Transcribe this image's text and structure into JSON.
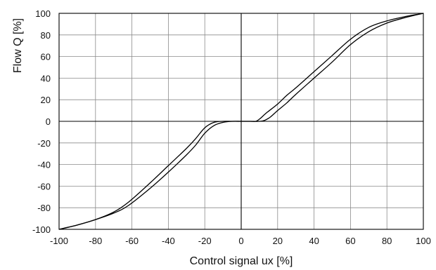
{
  "chart_data": {
    "type": "line",
    "title": "",
    "xlabel": "Control signal ux [%]",
    "ylabel": "Flow Q [%]",
    "xlim": [
      -100,
      100
    ],
    "ylim": [
      -100,
      100
    ],
    "x_ticks": [
      -100,
      -80,
      -60,
      -40,
      -20,
      0,
      20,
      40,
      60,
      80,
      100
    ],
    "y_ticks": [
      -100,
      -80,
      -60,
      -40,
      -20,
      0,
      20,
      40,
      60,
      80,
      100
    ],
    "grid": true,
    "series": [
      {
        "points": [
          [
            -100,
            -100
          ],
          [
            -90,
            -96
          ],
          [
            -80,
            -91
          ],
          [
            -70,
            -85
          ],
          [
            -62,
            -78
          ],
          [
            -50,
            -62
          ],
          [
            -40,
            -47
          ],
          [
            -30,
            -31
          ],
          [
            -25,
            -22
          ],
          [
            -20,
            -11
          ],
          [
            -15,
            -4
          ],
          [
            -10,
            -1
          ],
          [
            -5,
            0
          ],
          [
            0,
            0
          ],
          [
            5,
            0
          ],
          [
            10,
            0
          ],
          [
            13,
            1
          ],
          [
            16,
            4
          ],
          [
            20,
            10
          ],
          [
            25,
            17
          ],
          [
            30,
            25
          ],
          [
            40,
            40
          ],
          [
            50,
            55
          ],
          [
            60,
            71
          ],
          [
            70,
            83
          ],
          [
            80,
            91
          ],
          [
            90,
            96
          ],
          [
            100,
            100
          ]
        ]
      },
      {
        "points": [
          [
            -100,
            -100
          ],
          [
            -90,
            -96
          ],
          [
            -80,
            -91
          ],
          [
            -70,
            -84
          ],
          [
            -62,
            -75
          ],
          [
            -50,
            -57
          ],
          [
            -40,
            -41
          ],
          [
            -30,
            -25
          ],
          [
            -25,
            -16
          ],
          [
            -20,
            -6
          ],
          [
            -15,
            -1
          ],
          [
            -10,
            0
          ],
          [
            -5,
            0
          ],
          [
            0,
            0
          ],
          [
            5,
            0
          ],
          [
            8,
            0
          ],
          [
            10,
            2
          ],
          [
            14,
            8
          ],
          [
            20,
            16
          ],
          [
            25,
            24
          ],
          [
            30,
            31
          ],
          [
            40,
            46
          ],
          [
            50,
            61
          ],
          [
            60,
            76
          ],
          [
            70,
            87
          ],
          [
            80,
            93
          ],
          [
            90,
            97
          ],
          [
            100,
            100
          ]
        ]
      }
    ]
  }
}
